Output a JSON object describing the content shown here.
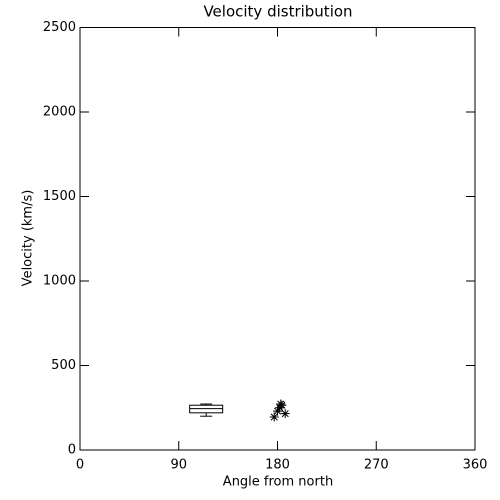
{
  "chart_data": {
    "type": "box",
    "title": "Velocity distribution",
    "xlabel": "Angle from north",
    "ylabel": "Velocity (km/s)",
    "xlim": [
      0,
      360
    ],
    "xticks": [
      0,
      90,
      180,
      270,
      360
    ],
    "ylim": [
      0,
      2500
    ],
    "yticks": [
      0,
      500,
      1000,
      1500,
      2000,
      2500
    ],
    "boxes": [
      {
        "x": 115,
        "min": 200,
        "q1": 220,
        "median": 245,
        "q3": 265,
        "max": 272
      }
    ],
    "points": {
      "marker": "asterisk",
      "x": [
        177,
        180,
        182,
        184,
        183,
        187
      ],
      "y": [
        195,
        230,
        250,
        265,
        272,
        215
      ]
    }
  }
}
